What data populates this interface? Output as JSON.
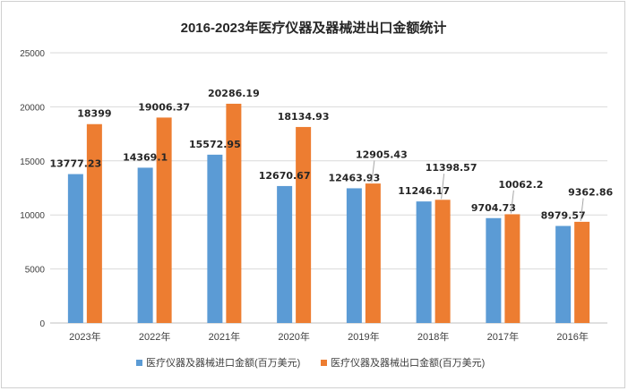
{
  "chart_data": {
    "type": "bar",
    "title": "2016-2023年医疗仪器及器械进出口金额统计",
    "xlabel": "",
    "ylabel": "",
    "ylim": [
      0,
      25000
    ],
    "yticks": [
      0,
      5000,
      10000,
      15000,
      20000,
      25000
    ],
    "grid": true,
    "legend_position": "bottom",
    "categories": [
      "2023年",
      "2022年",
      "2021年",
      "2020年",
      "2019年",
      "2018年",
      "2017年",
      "2016年"
    ],
    "series": [
      {
        "name": "医疗仪器及器械进口金额(百万美元)",
        "color": "#5b9bd5",
        "values": [
          13777.23,
          14369.1,
          15572.95,
          12670.67,
          12463.93,
          11246.17,
          9704.73,
          8979.57
        ],
        "labels": [
          "13777.23",
          "14369.1",
          "15572.95",
          "12670.67",
          "12463.93",
          "11246.17",
          "9704.73",
          "8979.57"
        ]
      },
      {
        "name": "医疗仪器及器械出口金额(百万美元)",
        "color": "#ed7d31",
        "values": [
          18399,
          19006.37,
          20286.19,
          18134.93,
          12905.43,
          11398.57,
          10062.2,
          9362.86
        ],
        "labels": [
          "18399",
          "19006.37",
          "20286.19",
          "18134.93",
          "12905.43",
          "11398.57",
          "10062.2",
          "9362.86"
        ]
      }
    ]
  }
}
